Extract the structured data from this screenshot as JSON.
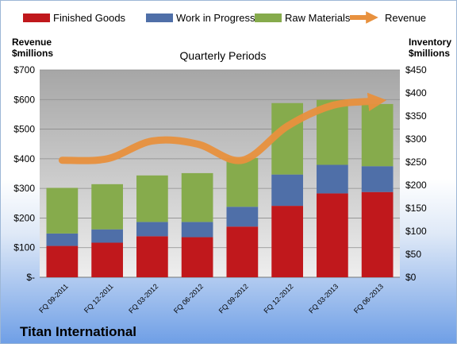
{
  "chart_data": {
    "type": "bar",
    "stacked": true,
    "subtitle": "Quarterly Periods",
    "company": "Titan International",
    "categories": [
      "FQ 09-2011",
      "FQ 12-2011",
      "FQ 03-2012",
      "FQ 06-2012",
      "FQ 09-2012",
      "FQ 12-2012",
      "FQ 03-2013",
      "FQ 06-2013"
    ],
    "series": [
      {
        "name": "Finished Goods",
        "color": "#c0181c",
        "axis": "right",
        "values": [
          68,
          75,
          89,
          87,
          110,
          155,
          182,
          185
        ]
      },
      {
        "name": "Work in Progress",
        "color": "#4f6fa8",
        "axis": "right",
        "values": [
          27,
          29,
          31,
          33,
          43,
          68,
          62,
          56
        ]
      },
      {
        "name": "Raw Materials",
        "color": "#86ab4c",
        "axis": "right",
        "values": [
          99,
          98,
          101,
          106,
          106,
          155,
          141,
          135
        ]
      },
      {
        "name": "Revenue",
        "type": "line",
        "color": "#e8913e",
        "axis": "left",
        "values": [
          395,
          400,
          460,
          450,
          395,
          510,
          580,
          595
        ]
      }
    ],
    "left_axis": {
      "label_line1": "Revenue",
      "label_line2": "$millions",
      "min": 0,
      "max": 700,
      "step": 100,
      "ticks": [
        "$-",
        "$100",
        "$200",
        "$300",
        "$400",
        "$500",
        "$600",
        "$700"
      ]
    },
    "right_axis": {
      "label_line1": "Inventory",
      "label_line2": "$millions",
      "min": 0,
      "max": 450,
      "step": 50,
      "ticks": [
        "$0",
        "$50",
        "$100",
        "$150",
        "$200",
        "$250",
        "$300",
        "$350",
        "$400",
        "$450"
      ]
    },
    "legend_position": "top",
    "grid": true
  }
}
